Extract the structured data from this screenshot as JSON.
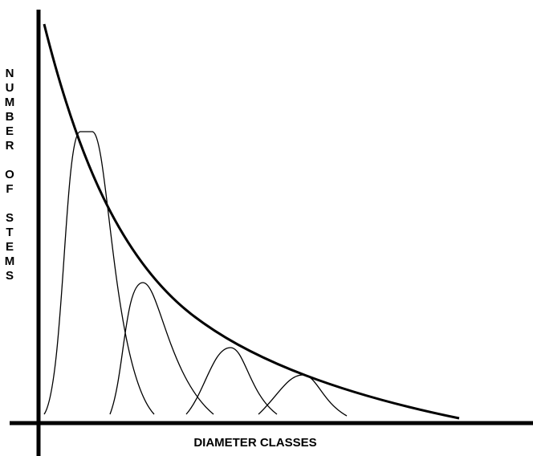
{
  "axes": {
    "y_label": "NUMBER OF STEMS",
    "x_label": "DIAMETER CLASSES"
  }
}
